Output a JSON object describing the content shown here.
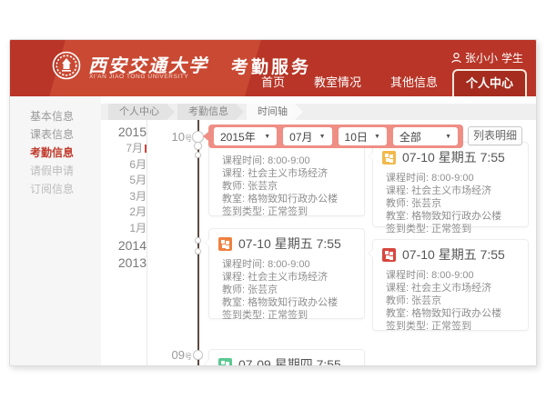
{
  "header": {
    "university_name_cn": "西安交通大学",
    "university_name_en": "XI'AN JIAO TONG UNIVERSITY",
    "app_name": "考勤服务",
    "user": {
      "name": "张小小",
      "role": "学生"
    },
    "nav_items": [
      {
        "label": "首页",
        "active": false
      },
      {
        "label": "教室情况",
        "active": false
      },
      {
        "label": "其他信息",
        "active": false
      },
      {
        "label": "个人中心",
        "active": true
      }
    ]
  },
  "sidebar": {
    "items": [
      {
        "label": "基本信息",
        "state": "normal"
      },
      {
        "label": "课表信息",
        "state": "normal"
      },
      {
        "label": "考勤信息",
        "state": "active"
      },
      {
        "label": "请假申请",
        "state": "muted"
      },
      {
        "label": "订阅信息",
        "state": "muted"
      }
    ]
  },
  "breadcrumb": [
    {
      "label": "个人中心",
      "active": false
    },
    {
      "label": "考勤信息",
      "active": false
    },
    {
      "label": "时间轴",
      "active": true
    }
  ],
  "filter_bar": {
    "caret_icon": "▼",
    "dropdowns": [
      {
        "name": "year",
        "value": "2015年"
      },
      {
        "name": "month",
        "value": "07月"
      },
      {
        "name": "day",
        "value": "10日"
      },
      {
        "name": "type",
        "value": "全部"
      }
    ],
    "list_detail_button": "列表明细"
  },
  "timeline": {
    "scale": [
      {
        "label": "2015",
        "type": "year"
      },
      {
        "label": "7月",
        "type": "month",
        "current": true
      },
      {
        "label": "6月",
        "type": "month"
      },
      {
        "label": "5月",
        "type": "month"
      },
      {
        "label": "3月",
        "type": "month"
      },
      {
        "label": "2月",
        "type": "month"
      },
      {
        "label": "1月",
        "type": "month"
      },
      {
        "label": "2014",
        "type": "year"
      },
      {
        "label": "2013",
        "type": "year"
      }
    ],
    "day_markers": [
      {
        "day": "10",
        "suffix": "号"
      },
      {
        "day": "09",
        "suffix": "号"
      }
    ],
    "cards": [
      {
        "date": "",
        "icon_color": "",
        "fields": [
          {
            "label": "课程时间",
            "value": "8:00-9:00"
          },
          {
            "label": "课程",
            "value": "社会主义市场经济"
          },
          {
            "label": "教师",
            "value": "张芸京"
          },
          {
            "label": "教室",
            "value": "格物致知行政办公楼"
          },
          {
            "label": "签到类型",
            "value": "正常签到"
          }
        ]
      },
      {
        "date": "07-10 星期五 7:55",
        "icon_color": "#f2b94b",
        "fields": [
          {
            "label": "课程时间",
            "value": "8:00-9:00"
          },
          {
            "label": "课程",
            "value": "社会主义市场经济"
          },
          {
            "label": "教师",
            "value": "张芸京"
          },
          {
            "label": "教室",
            "value": "格物致知行政办公楼"
          },
          {
            "label": "签到类型",
            "value": "正常签到"
          }
        ]
      },
      {
        "date": "07-10 星期五 7:55",
        "icon_color": "#ef8140",
        "fields": [
          {
            "label": "课程时间",
            "value": "8:00-9:00"
          },
          {
            "label": "课程",
            "value": "社会主义市场经济"
          },
          {
            "label": "教师",
            "value": "张芸京"
          },
          {
            "label": "教室",
            "value": "格物致知行政办公楼"
          },
          {
            "label": "签到类型",
            "value": "正常签到"
          }
        ]
      },
      {
        "date": "07-10 星期五 7:55",
        "icon_color": "#d6473e",
        "fields": [
          {
            "label": "课程时间",
            "value": "8:00-9:00"
          },
          {
            "label": "课程",
            "value": "社会主义市场经济"
          },
          {
            "label": "教师",
            "value": "张芸京"
          },
          {
            "label": "教室",
            "value": "格物致知行政办公楼"
          },
          {
            "label": "签到类型",
            "value": "正常签到"
          }
        ]
      },
      {
        "date": "07-09 星期四 7:55",
        "icon_color": "#5bc892",
        "fields": []
      }
    ]
  },
  "colors": {
    "header_red": "#b83527",
    "header_band_red": "#c94933",
    "active_tab_red": "#a52c1e",
    "accent_red": "#c0392b",
    "filter_pink": "#ef8e85",
    "timeline_line": "#5c4a41"
  }
}
